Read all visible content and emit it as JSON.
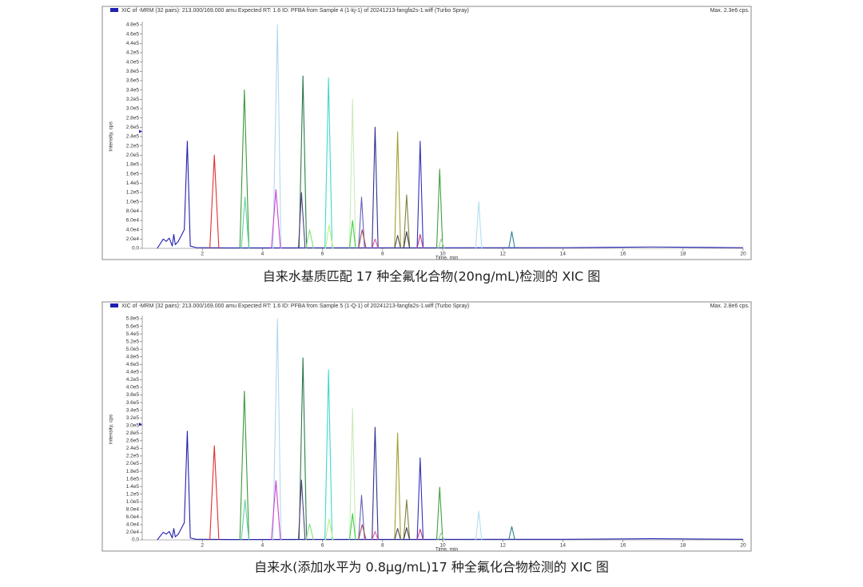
{
  "chart_data": [
    {
      "type": "line",
      "title": "XIC of -MRM (32 pairs): 213.000/169.000 amu Expected RT: 1.6 ID: PFBA from Sample 4 (1-kj-1) of 20241213-fangfa2s-1.wiff (Turbo Spray)",
      "annotation": "Max. 2.3e6 cps.",
      "xlabel": "Time, min",
      "ylabel": "Intensity, cps",
      "caption": "自来水基质匹配 17 种全氟化合物(20ng/mL)检测的 XIC 图",
      "xlim": [
        0,
        20
      ],
      "ylim": [
        0,
        480000
      ],
      "xticks": [
        2,
        4,
        6,
        8,
        10,
        12,
        14,
        16,
        18,
        20
      ],
      "yticks": [
        {
          "value": 0,
          "label": "0.0"
        },
        {
          "value": 20000,
          "label": "2.0e4"
        },
        {
          "value": 40000,
          "label": "4.0e4"
        },
        {
          "value": 60000,
          "label": "6.0e4"
        },
        {
          "value": 80000,
          "label": "8.0e4"
        },
        {
          "value": 100000,
          "label": "1.0e5"
        },
        {
          "value": 120000,
          "label": "1.2e5"
        },
        {
          "value": 140000,
          "label": "1.4e5"
        },
        {
          "value": 160000,
          "label": "1.6e5"
        },
        {
          "value": 180000,
          "label": "1.8e5"
        },
        {
          "value": 200000,
          "label": "2.0e5"
        },
        {
          "value": 220000,
          "label": "2.2e5"
        },
        {
          "value": 240000,
          "label": "2.4e5"
        },
        {
          "value": 260000,
          "label": "2.6e5"
        },
        {
          "value": 280000,
          "label": "2.8e5"
        },
        {
          "value": 300000,
          "label": "3.0e5"
        },
        {
          "value": 320000,
          "label": "3.2e5"
        },
        {
          "value": 340000,
          "label": "3.4e5"
        },
        {
          "value": 360000,
          "label": "3.6e5"
        },
        {
          "value": 380000,
          "label": "3.8e5"
        },
        {
          "value": 400000,
          "label": "4.0e5"
        },
        {
          "value": 420000,
          "label": "4.2e5"
        },
        {
          "value": 440000,
          "label": "4.4e5"
        },
        {
          "value": 460000,
          "label": "4.6e5"
        },
        {
          "value": 480000,
          "label": "4.8e5"
        }
      ],
      "series": [
        {
          "color": "#2020b0",
          "x": [
            0.5,
            0.7,
            0.8,
            0.9,
            1.0,
            1.05,
            1.1,
            1.2,
            1.4,
            1.5,
            1.6,
            1.8,
            3,
            14,
            17,
            20
          ],
          "values": [
            0,
            20000,
            15000,
            22000,
            5000,
            30000,
            8000,
            15000,
            40000,
            230000,
            5000,
            1500,
            1000,
            1500,
            3000,
            1500
          ]
        },
        {
          "color": "#e03030",
          "x": [
            2.25,
            2.4,
            2.55
          ],
          "values": [
            0,
            200000,
            0
          ]
        },
        {
          "color": "#3a9a3a",
          "x": [
            3.25,
            3.4,
            3.55
          ],
          "values": [
            0,
            340000,
            0
          ]
        },
        {
          "color": "#60d0a0",
          "x": [
            3.3,
            3.42,
            3.55
          ],
          "values": [
            0,
            110000,
            0
          ]
        },
        {
          "color": "#b0d8f0",
          "x": [
            4.35,
            4.5,
            4.62
          ],
          "values": [
            0,
            480000,
            0
          ]
        },
        {
          "color": "#d040d0",
          "x": [
            4.3,
            4.45,
            4.6
          ],
          "values": [
            0,
            126000,
            0
          ]
        },
        {
          "color": "#2a7a4a",
          "x": [
            5.22,
            5.35,
            5.47
          ],
          "values": [
            0,
            370000,
            0
          ]
        },
        {
          "color": "#504080",
          "x": [
            5.2,
            5.3,
            5.42
          ],
          "values": [
            0,
            120000,
            0
          ]
        },
        {
          "color": "#80e080",
          "x": [
            5.45,
            5.57,
            5.7
          ],
          "values": [
            0,
            40000,
            0
          ]
        },
        {
          "color": "#40d8d0",
          "x": [
            6.08,
            6.2,
            6.32
          ],
          "values": [
            0,
            366000,
            0
          ]
        },
        {
          "color": "#c0f080",
          "x": [
            6.1,
            6.22,
            6.35
          ],
          "values": [
            0,
            50000,
            0
          ]
        },
        {
          "color": "#c8ecb8",
          "x": [
            6.9,
            7.0,
            7.1
          ],
          "values": [
            0,
            320000,
            0
          ]
        },
        {
          "color": "#40d040",
          "x": [
            6.9,
            7.0,
            7.1
          ],
          "values": [
            0,
            60000,
            0
          ]
        },
        {
          "color": "#6060c0",
          "x": [
            7.2,
            7.3,
            7.4
          ],
          "values": [
            0,
            110000,
            0
          ]
        },
        {
          "color": "#a05050",
          "x": [
            7.2,
            7.32,
            7.45
          ],
          "values": [
            0,
            40000,
            0
          ]
        },
        {
          "color": "#303090",
          "x": [
            7.65,
            7.75,
            7.85
          ],
          "values": [
            0,
            260000,
            0
          ]
        },
        {
          "color": "#e060a0",
          "x": [
            7.65,
            7.75,
            7.85
          ],
          "values": [
            0,
            20000,
            0
          ]
        },
        {
          "color": "#a0a030",
          "x": [
            8.4,
            8.5,
            8.6
          ],
          "values": [
            0,
            250000,
            0
          ]
        },
        {
          "color": "#505050",
          "x": [
            8.4,
            8.5,
            8.6
          ],
          "values": [
            0,
            28000,
            0
          ]
        },
        {
          "color": "#808040",
          "x": [
            8.7,
            8.8,
            8.9
          ],
          "values": [
            0,
            115000,
            0
          ]
        },
        {
          "color": "#404040",
          "x": [
            8.7,
            8.8,
            8.9
          ],
          "values": [
            0,
            36000,
            0
          ]
        },
        {
          "color": "#3030c0",
          "x": [
            9.15,
            9.25,
            9.35
          ],
          "values": [
            0,
            230000,
            0
          ]
        },
        {
          "color": "#c04080",
          "x": [
            9.15,
            9.25,
            9.35
          ],
          "values": [
            0,
            30000,
            0
          ]
        },
        {
          "color": "#40a040",
          "x": [
            9.8,
            9.9,
            10.0
          ],
          "values": [
            0,
            170000,
            0
          ]
        },
        {
          "color": "#a0d0a0",
          "x": [
            9.85,
            9.95,
            10.05
          ],
          "values": [
            0,
            20000,
            0
          ]
        },
        {
          "color": "#b0e0f0",
          "x": [
            11.1,
            11.2,
            11.3
          ],
          "values": [
            0,
            100000,
            0
          ]
        },
        {
          "color": "#308090",
          "x": [
            12.2,
            12.3,
            12.4
          ],
          "values": [
            0,
            36000,
            0
          ]
        }
      ]
    },
    {
      "type": "line",
      "title": "XIC of -MRM (32 pairs): 213.000/169.000 amu Expected RT: 1.6 ID: PFBA from Sample 5 (1-Q-1) of 20241213-fangfa2s-1.wiff (Turbo Spray)",
      "annotation": "Max. 2.8e6 cps.",
      "xlabel": "Time, min",
      "ylabel": "Intensity, cps",
      "caption": "自来水(添加水平为 0.8μg/mL)17 种全氟化合物检测的 XIC 图",
      "xlim": [
        0,
        20
      ],
      "ylim": [
        0,
        580000
      ],
      "xticks": [
        2,
        4,
        6,
        8,
        10,
        12,
        14,
        16,
        18,
        20
      ],
      "yticks": [
        {
          "value": 0,
          "label": "0.0"
        },
        {
          "value": 20000,
          "label": "2.0e4"
        },
        {
          "value": 40000,
          "label": "4.0e4"
        },
        {
          "value": 60000,
          "label": "6.0e4"
        },
        {
          "value": 80000,
          "label": "8.0e4"
        },
        {
          "value": 100000,
          "label": "1.0e5"
        },
        {
          "value": 120000,
          "label": "1.2e5"
        },
        {
          "value": 140000,
          "label": "1.4e5"
        },
        {
          "value": 160000,
          "label": "1.6e5"
        },
        {
          "value": 180000,
          "label": "1.8e5"
        },
        {
          "value": 200000,
          "label": "2.0e5"
        },
        {
          "value": 220000,
          "label": "2.2e5"
        },
        {
          "value": 240000,
          "label": "2.4e5"
        },
        {
          "value": 260000,
          "label": "2.6e5"
        },
        {
          "value": 280000,
          "label": "2.8e5"
        },
        {
          "value": 300000,
          "label": "3.0e5"
        },
        {
          "value": 320000,
          "label": "3.2e5"
        },
        {
          "value": 340000,
          "label": "3.4e5"
        },
        {
          "value": 360000,
          "label": "3.6e5"
        },
        {
          "value": 380000,
          "label": "3.8e5"
        },
        {
          "value": 400000,
          "label": "4.0e5"
        },
        {
          "value": 420000,
          "label": "4.2e5"
        },
        {
          "value": 440000,
          "label": "4.4e5"
        },
        {
          "value": 460000,
          "label": "4.6e5"
        },
        {
          "value": 480000,
          "label": "4.8e5"
        },
        {
          "value": 500000,
          "label": "5.0e5"
        },
        {
          "value": 520000,
          "label": "5.2e5"
        },
        {
          "value": 540000,
          "label": "5.4e5"
        },
        {
          "value": 560000,
          "label": "5.6e5"
        },
        {
          "value": 580000,
          "label": "5.8e5"
        }
      ],
      "series": [
        {
          "color": "#2020b0",
          "x": [
            0.5,
            0.7,
            0.8,
            0.9,
            1.0,
            1.05,
            1.1,
            1.2,
            1.4,
            1.5,
            1.6,
            1.8,
            3,
            14,
            17,
            20
          ],
          "values": [
            0,
            20000,
            15000,
            22000,
            5000,
            30000,
            8000,
            15000,
            45000,
            285000,
            5000,
            1500,
            1000,
            1500,
            3000,
            1500
          ]
        },
        {
          "color": "#e03030",
          "x": [
            2.25,
            2.4,
            2.55
          ],
          "values": [
            0,
            247000,
            0
          ]
        },
        {
          "color": "#3a9a3a",
          "x": [
            3.25,
            3.4,
            3.55
          ],
          "values": [
            0,
            390000,
            0
          ]
        },
        {
          "color": "#60d0a0",
          "x": [
            3.3,
            3.42,
            3.55
          ],
          "values": [
            0,
            105000,
            0
          ]
        },
        {
          "color": "#b0d8f0",
          "x": [
            4.35,
            4.5,
            4.62
          ],
          "values": [
            0,
            580000,
            0
          ]
        },
        {
          "color": "#d040d0",
          "x": [
            4.3,
            4.45,
            4.6
          ],
          "values": [
            0,
            155000,
            0
          ]
        },
        {
          "color": "#2a7a4a",
          "x": [
            5.22,
            5.35,
            5.47
          ],
          "values": [
            0,
            477000,
            0
          ]
        },
        {
          "color": "#504080",
          "x": [
            5.2,
            5.3,
            5.42
          ],
          "values": [
            0,
            157000,
            0
          ]
        },
        {
          "color": "#80e080",
          "x": [
            5.45,
            5.57,
            5.7
          ],
          "values": [
            0,
            42000,
            0
          ]
        },
        {
          "color": "#40d8d0",
          "x": [
            6.08,
            6.2,
            6.32
          ],
          "values": [
            0,
            446000,
            0
          ]
        },
        {
          "color": "#c0f080",
          "x": [
            6.1,
            6.22,
            6.35
          ],
          "values": [
            0,
            55000,
            0
          ]
        },
        {
          "color": "#c8ecb8",
          "x": [
            6.9,
            7.0,
            7.1
          ],
          "values": [
            0,
            345000,
            0
          ]
        },
        {
          "color": "#40d040",
          "x": [
            6.9,
            7.0,
            7.1
          ],
          "values": [
            0,
            69000,
            0
          ]
        },
        {
          "color": "#6060c0",
          "x": [
            7.2,
            7.3,
            7.4
          ],
          "values": [
            0,
            117000,
            0
          ]
        },
        {
          "color": "#a05050",
          "x": [
            7.2,
            7.32,
            7.45
          ],
          "values": [
            0,
            40000,
            0
          ]
        },
        {
          "color": "#303090",
          "x": [
            7.65,
            7.75,
            7.85
          ],
          "values": [
            0,
            295000,
            0
          ]
        },
        {
          "color": "#e060a0",
          "x": [
            7.65,
            7.75,
            7.85
          ],
          "values": [
            0,
            22000,
            0
          ]
        },
        {
          "color": "#a0a030",
          "x": [
            8.4,
            8.5,
            8.6
          ],
          "values": [
            0,
            280000,
            0
          ]
        },
        {
          "color": "#505050",
          "x": [
            8.4,
            8.5,
            8.6
          ],
          "values": [
            0,
            30000,
            0
          ]
        },
        {
          "color": "#808040",
          "x": [
            8.7,
            8.8,
            8.9
          ],
          "values": [
            0,
            105000,
            0
          ]
        },
        {
          "color": "#404040",
          "x": [
            8.7,
            8.8,
            8.9
          ],
          "values": [
            0,
            32000,
            0
          ]
        },
        {
          "color": "#3030c0",
          "x": [
            9.15,
            9.25,
            9.35
          ],
          "values": [
            0,
            215000,
            0
          ]
        },
        {
          "color": "#c04080",
          "x": [
            9.15,
            9.25,
            9.35
          ],
          "values": [
            0,
            28000,
            0
          ]
        },
        {
          "color": "#40a040",
          "x": [
            9.8,
            9.9,
            10.0
          ],
          "values": [
            0,
            138000,
            0
          ]
        },
        {
          "color": "#a0d0a0",
          "x": [
            9.85,
            9.95,
            10.05
          ],
          "values": [
            0,
            18000,
            0
          ]
        },
        {
          "color": "#b0e0f0",
          "x": [
            11.1,
            11.2,
            11.3
          ],
          "values": [
            0,
            75000,
            0
          ]
        },
        {
          "color": "#308090",
          "x": [
            12.2,
            12.3,
            12.4
          ],
          "values": [
            0,
            35000,
            0
          ]
        }
      ]
    }
  ]
}
